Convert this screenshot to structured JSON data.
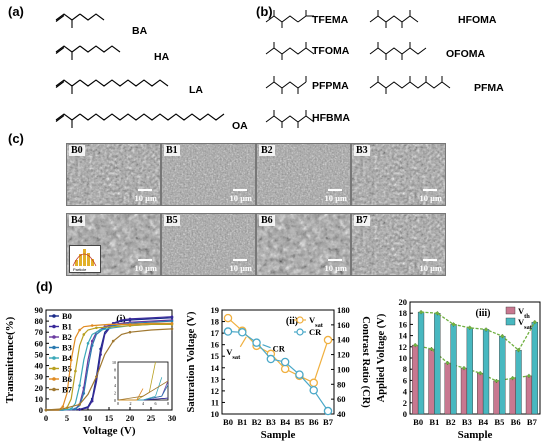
{
  "panel_a": {
    "label": "(a)",
    "monomers": [
      "BA",
      "HA",
      "LA",
      "OA"
    ]
  },
  "panel_b": {
    "label": "(b)",
    "monomers_left": [
      "TFEMA",
      "TFOMA",
      "PFPMA",
      "HFBMA"
    ],
    "monomers_right": [
      "HFOMA",
      "OFOMA",
      "PFMA"
    ]
  },
  "panel_c": {
    "label": "(c)",
    "images": [
      {
        "label": "B0",
        "scale": "10 μm"
      },
      {
        "label": "B1",
        "scale": "10 μm"
      },
      {
        "label": "B2",
        "scale": "10 μm"
      },
      {
        "label": "B3",
        "scale": "10 μm"
      },
      {
        "label": "B4",
        "scale": "10 μm"
      },
      {
        "label": "B5",
        "scale": "10 μm"
      },
      {
        "label": "B6",
        "scale": "10 μm"
      },
      {
        "label": "B7",
        "scale": "10 μm"
      }
    ],
    "inset_text": "Particle"
  },
  "panel_d": {
    "label": "(d)"
  },
  "colors": {
    "B0": "#1a2a8a",
    "B1": "#3a2a9a",
    "B2": "#6a3aa0",
    "B3": "#2a7ab0",
    "B4": "#3aa8b8",
    "B5": "#b8a020",
    "B6": "#e08a20",
    "B7": "#a07830",
    "vsat": "#f0b040",
    "cr": "#4aa8c8",
    "vth_bar": "#c87890",
    "vsat_bar": "#48b8c0",
    "trend": "#70b040"
  },
  "chart_data": [
    {
      "id": "i",
      "type": "line",
      "panel_label": "(i)",
      "xlabel": "Voltage (V)",
      "ylabel": "Transmittance(%)",
      "xlim": [
        0,
        30
      ],
      "ylim": [
        0,
        90
      ],
      "xticks": [
        0,
        5,
        10,
        15,
        20,
        25,
        30
      ],
      "yticks": [
        0,
        10,
        20,
        30,
        40,
        50,
        60,
        70,
        80,
        90
      ],
      "legend": "top-left",
      "series": [
        {
          "name": "B0",
          "x": [
            0,
            4,
            8,
            10,
            11,
            12,
            13,
            14,
            16,
            18,
            20,
            25,
            30
          ],
          "y": [
            0,
            0,
            0.5,
            3,
            10,
            30,
            55,
            70,
            78,
            80,
            81,
            82,
            83
          ]
        },
        {
          "name": "B1",
          "x": [
            0,
            4,
            8,
            10,
            11,
            12,
            13,
            14,
            16,
            18,
            20,
            25,
            30
          ],
          "y": [
            0,
            0,
            0.5,
            2,
            8,
            25,
            50,
            68,
            78,
            81,
            82,
            83,
            84
          ]
        },
        {
          "name": "B2",
          "x": [
            0,
            4,
            7,
            8,
            9,
            10,
            11,
            12,
            14,
            16,
            20,
            25,
            30
          ],
          "y": [
            0,
            0,
            1,
            5,
            20,
            45,
            62,
            70,
            75,
            77,
            79,
            80,
            81
          ]
        },
        {
          "name": "B3",
          "x": [
            0,
            4,
            7,
            8,
            9,
            10,
            11,
            12,
            14,
            16,
            20,
            25,
            30
          ],
          "y": [
            0,
            0,
            1,
            4,
            15,
            38,
            58,
            68,
            74,
            76,
            78,
            79,
            80
          ]
        },
        {
          "name": "B4",
          "x": [
            0,
            4,
            6,
            7,
            8,
            9,
            10,
            11,
            13,
            16,
            20,
            25,
            30
          ],
          "y": [
            0,
            0,
            1,
            6,
            22,
            45,
            60,
            68,
            72,
            74,
            76,
            77,
            78
          ]
        },
        {
          "name": "B5",
          "x": [
            0,
            3,
            5,
            6,
            7,
            8,
            9,
            10,
            12,
            16,
            20,
            25,
            30
          ],
          "y": [
            0,
            0,
            2,
            10,
            35,
            58,
            68,
            72,
            74,
            75,
            76,
            77,
            77
          ]
        },
        {
          "name": "B6",
          "x": [
            0,
            3,
            4,
            5,
            6,
            7,
            8,
            9,
            11,
            15,
            20,
            25,
            30
          ],
          "y": [
            0,
            0,
            3,
            15,
            45,
            65,
            72,
            75,
            76,
            77,
            77,
            78,
            78
          ]
        },
        {
          "name": "B7",
          "x": [
            0,
            4,
            8,
            10,
            12,
            14,
            16,
            18,
            20,
            25,
            30
          ],
          "y": [
            0,
            1,
            5,
            14,
            30,
            50,
            62,
            68,
            70,
            72,
            73
          ]
        }
      ],
      "inset": {
        "xlim": [
          0,
          8
        ],
        "ylim": [
          0,
          10
        ],
        "xticks": [
          0,
          2,
          4,
          6,
          8
        ],
        "yticks": [
          0,
          2,
          4,
          6,
          8,
          10
        ]
      }
    },
    {
      "id": "ii",
      "type": "line",
      "panel_label": "(ii)",
      "xlabel": "Sample",
      "ylabel": "Saturation Voltage (V)",
      "ylabel_right": "Contrast Ratio (CR)",
      "categories": [
        "B0",
        "B1",
        "B2",
        "B3",
        "B4",
        "B5",
        "B6",
        "B7"
      ],
      "ylim": [
        10,
        19
      ],
      "yticks": [
        10,
        11,
        12,
        13,
        14,
        15,
        16,
        17,
        18,
        19
      ],
      "ylim_right": [
        40,
        180
      ],
      "yticks_right": [
        40,
        60,
        80,
        100,
        120,
        140,
        160,
        180
      ],
      "legend": "top-right",
      "series": [
        {
          "name": "V_sat",
          "axis": "left",
          "values": [
            18.3,
            17.2,
            15.9,
            15.2,
            13.9,
            13.3,
            12.7,
            16.4
          ]
        },
        {
          "name": "CR",
          "axis": "right",
          "values": [
            151,
            150,
            136,
            114,
            110,
            93,
            72,
            44
          ]
        }
      ],
      "annotations": [
        "CR",
        "V_sat"
      ]
    },
    {
      "id": "iii",
      "type": "bar",
      "panel_label": "(iii)",
      "xlabel": "Sample",
      "ylabel": "Applied Voltage (V)",
      "categories": [
        "B0",
        "B1",
        "B2",
        "B3",
        "B4",
        "B5",
        "B6",
        "B7"
      ],
      "ylim": [
        0,
        20
      ],
      "yticks": [
        0,
        2,
        4,
        6,
        8,
        10,
        12,
        14,
        16,
        18,
        20
      ],
      "legend": "top-right",
      "series": [
        {
          "name": "V_th",
          "values": [
            12.3,
            11.6,
            9.1,
            8.2,
            7.3,
            5.9,
            6.4,
            6.8
          ]
        },
        {
          "name": "V_sat",
          "values": [
            18.2,
            18.0,
            16.0,
            15.4,
            15.1,
            13.9,
            11.4,
            16.4
          ]
        }
      ]
    }
  ]
}
